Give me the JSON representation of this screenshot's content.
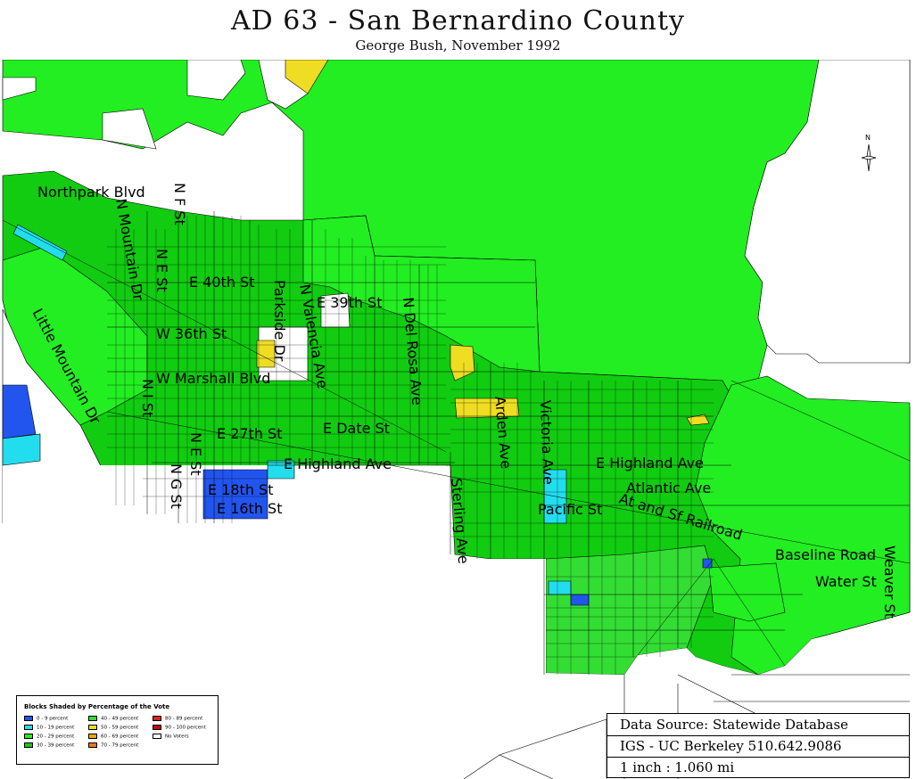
{
  "header": {
    "title": "AD 63 - San Bernardino County",
    "subtitle": "George Bush, November 1992"
  },
  "colors": {
    "bright_green": "#22ee22",
    "green_30_39": "#11cc11",
    "green_40_49": "#33dd33",
    "cyan": "#22ddee",
    "blue": "#2255ee",
    "yellow": "#eedd22",
    "white": "#ffffff",
    "line": "#000000"
  },
  "map": {
    "north_label": "N",
    "street_labels": [
      {
        "id": "northpark-blvd",
        "text": "Northpark Blvd"
      },
      {
        "id": "n-f-st",
        "text": "N F St"
      },
      {
        "id": "n-mountain-dr",
        "text": "N Mountain Dr"
      },
      {
        "id": "n-e-st",
        "text": "N E St"
      },
      {
        "id": "e-40th-st",
        "text": "E 40th St"
      },
      {
        "id": "parkside-dr",
        "text": "Parkside Dr"
      },
      {
        "id": "n-valencia-ave",
        "text": "N Valencia Ave"
      },
      {
        "id": "e-39th-st",
        "text": "E 39th St"
      },
      {
        "id": "n-del-rosa-ave",
        "text": "N Del Rosa Ave"
      },
      {
        "id": "little-mountain-dr",
        "text": "Little Mountain Dr"
      },
      {
        "id": "w-36th-st",
        "text": "W 36th St"
      },
      {
        "id": "w-marshall-blvd",
        "text": "W Marshall Blvd"
      },
      {
        "id": "n-i-st",
        "text": "N I St"
      },
      {
        "id": "e-date-st",
        "text": "E Date St"
      },
      {
        "id": "arden-ave",
        "text": "Arden Ave"
      },
      {
        "id": "victoria-ave",
        "text": "Victoria Ave"
      },
      {
        "id": "n-e-st-2",
        "text": "N E St"
      },
      {
        "id": "e-27th-st",
        "text": "E 27th St"
      },
      {
        "id": "e-highland-ave-1",
        "text": "E Highland Ave"
      },
      {
        "id": "e-highland-ave-2",
        "text": "E Highland Ave"
      },
      {
        "id": "n-g-st",
        "text": "N G St"
      },
      {
        "id": "e-18th-st",
        "text": "E 18th St"
      },
      {
        "id": "e-16th-st",
        "text": "E 16th St"
      },
      {
        "id": "sterling-ave",
        "text": "Sterling Ave"
      },
      {
        "id": "atlantic-ave",
        "text": "Atlantic Ave"
      },
      {
        "id": "pacific-st",
        "text": "Pacific St"
      },
      {
        "id": "at-and-sf-railroad",
        "text": "At and Sf Railroad"
      },
      {
        "id": "baseline-road",
        "text": "Baseline Road"
      },
      {
        "id": "water-st",
        "text": "Water St"
      },
      {
        "id": "weaver-st",
        "text": "Weaver St"
      }
    ]
  },
  "legend": {
    "title": "Blocks Shaded by Percentage of the Vote",
    "items": [
      {
        "label": "0 - 9 percent",
        "color": "#2255ee"
      },
      {
        "label": "10 - 19 percent",
        "color": "#22ddee"
      },
      {
        "label": "20 - 29 percent",
        "color": "#22ee22"
      },
      {
        "label": "30 - 39 percent",
        "color": "#11cc11"
      },
      {
        "label": "40 - 49 percent",
        "color": "#33dd33"
      },
      {
        "label": "50 - 59 percent",
        "color": "#eedd22"
      },
      {
        "label": "60 - 69 percent",
        "color": "#eeaa11"
      },
      {
        "label": "70 - 79 percent",
        "color": "#ee7711"
      },
      {
        "label": "80 - 89 percent",
        "color": "#dd2222"
      },
      {
        "label": "90 - 100 percent",
        "color": "#cc0000"
      },
      {
        "label": "No Voters",
        "color": "#ffffff"
      }
    ]
  },
  "source": {
    "line1": "Data Source: Statewide Database",
    "line2": "IGS - UC Berkeley 510.642.9086",
    "line3": "1 inch : 1.060 mi"
  }
}
